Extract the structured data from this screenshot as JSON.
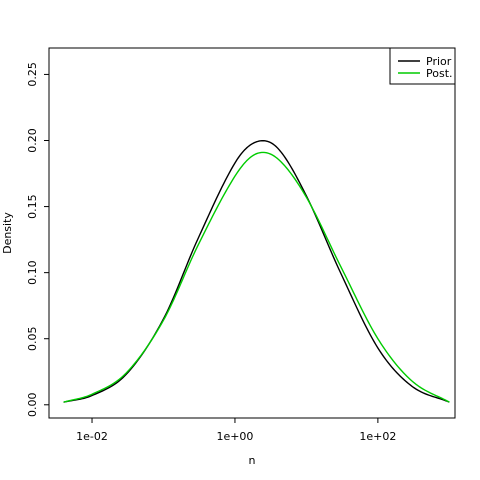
{
  "chart_data": {
    "type": "line",
    "xlabel": "n",
    "ylabel": "Density",
    "x_scale": "log10",
    "xlim": [
      0.0025,
      1200
    ],
    "ylim": [
      -0.01,
      0.27
    ],
    "x_ticks": [
      {
        "value": 0.01,
        "label": "1e-02"
      },
      {
        "value": 1,
        "label": "1e+00"
      },
      {
        "value": 100,
        "label": "1e+02"
      }
    ],
    "y_ticks": [
      {
        "value": 0.0,
        "label": "0.00"
      },
      {
        "value": 0.05,
        "label": "0.05"
      },
      {
        "value": 0.1,
        "label": "0.10"
      },
      {
        "value": 0.15,
        "label": "0.15"
      },
      {
        "value": 0.2,
        "label": "0.20"
      },
      {
        "value": 0.25,
        "label": "0.25"
      }
    ],
    "legend": {
      "position": "top-right"
    },
    "grid": false,
    "series": [
      {
        "name": "Prior",
        "color": "#000000",
        "x": [
          0.004,
          0.01,
          0.03,
          0.1,
          0.3,
          1,
          2,
          4,
          10,
          30,
          100,
          300,
          1000
        ],
        "values": [
          0.002,
          0.007,
          0.023,
          0.065,
          0.125,
          0.183,
          0.199,
          0.194,
          0.158,
          0.1,
          0.043,
          0.014,
          0.002
        ]
      },
      {
        "name": "Post.",
        "color": "#00cc00",
        "x": [
          0.004,
          0.01,
          0.03,
          0.1,
          0.3,
          1,
          2,
          4,
          10,
          30,
          100,
          300,
          1000
        ],
        "values": [
          0.002,
          0.008,
          0.024,
          0.064,
          0.12,
          0.173,
          0.19,
          0.186,
          0.157,
          0.105,
          0.05,
          0.018,
          0.002
        ]
      }
    ]
  }
}
